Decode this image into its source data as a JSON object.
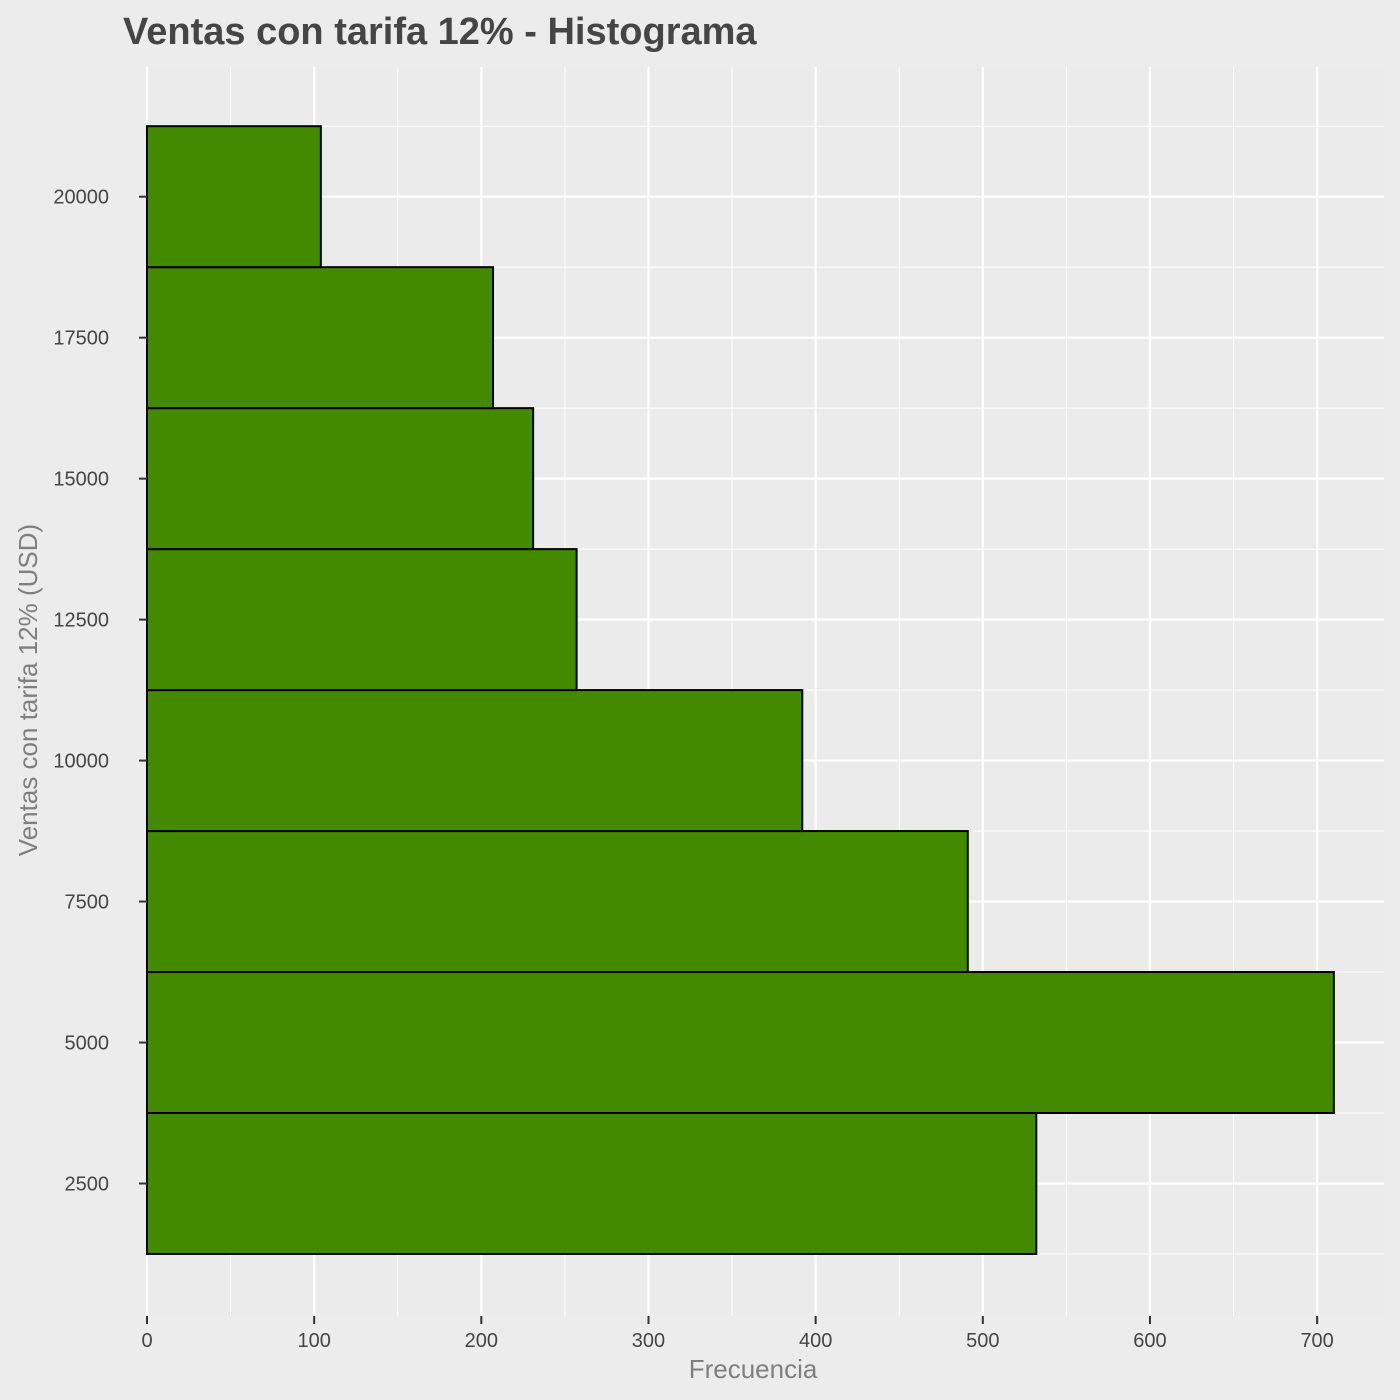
{
  "chart_data": {
    "type": "bar",
    "orientation": "horizontal",
    "title": "Ventas con tarifa 12% - Histograma",
    "xlabel": "Frecuencia",
    "ylabel": "Ventas con tarifa 12% (USD)",
    "xlim": [
      0,
      740
    ],
    "ylim": [
      150,
      22300
    ],
    "x_ticks": [
      0,
      100,
      200,
      300,
      400,
      500,
      600,
      700
    ],
    "y_ticks": [
      2500,
      5000,
      7500,
      10000,
      12500,
      15000,
      17500,
      20000
    ],
    "bins": [
      {
        "start": 1250,
        "end": 3750,
        "count": 532
      },
      {
        "start": 3750,
        "end": 6250,
        "count": 710
      },
      {
        "start": 6250,
        "end": 8750,
        "count": 491
      },
      {
        "start": 8750,
        "end": 11250,
        "count": 392
      },
      {
        "start": 11250,
        "end": 13750,
        "count": 257
      },
      {
        "start": 13750,
        "end": 16250,
        "count": 231
      },
      {
        "start": 16250,
        "end": 18750,
        "count": 207
      },
      {
        "start": 18750,
        "end": 21250,
        "count": 104
      }
    ],
    "grid": true,
    "colors": {
      "bar_fill": "#448a00",
      "bar_stroke": "#000000",
      "panel_background": "#ebebeb",
      "plot_background": "#ececec",
      "grid": "#ffffff"
    }
  }
}
